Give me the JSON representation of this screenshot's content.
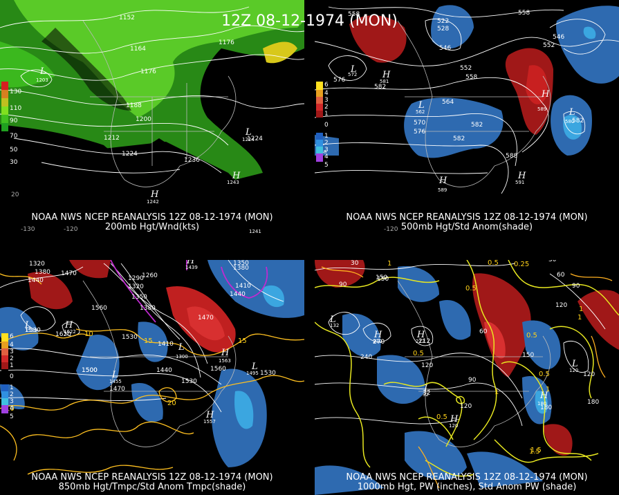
{
  "title": "12Z 08-12-1974 (MON)",
  "panels": [
    {
      "id": "200mb",
      "line1": "NOAA NWS NCEP REANALYSIS 12Z 08-12-1974 (MON)",
      "line2": "200mb Hgt/Wnd(kts)",
      "legend": [
        "130",
        "110",
        "90",
        "70",
        "50",
        "30"
      ],
      "legend_colors": [
        "#d62020",
        "#d68020",
        "#d6c020",
        "#80e020",
        "#40c020",
        "#20a020"
      ],
      "contour_labels": [
        "1152",
        "1164",
        "1176",
        "1176",
        "1188",
        "1200",
        "1212",
        "1224",
        "1236",
        "1224"
      ],
      "centers": [
        {
          "type": "L",
          "value": "1203"
        },
        {
          "type": "L",
          "value": "1224"
        },
        {
          "type": "H",
          "value": "1243"
        },
        {
          "type": "H",
          "value": "1242"
        },
        {
          "type": "H",
          "value": "1241"
        }
      ],
      "lon_labels": [
        "-130",
        "-120",
        "20"
      ]
    },
    {
      "id": "500mb",
      "line1": "NOAA NWS NCEP REANALYSIS 12Z 08-12-1974 (MON)",
      "line2": "500mb Hgt/Std Anom(shade)",
      "legend": [
        "6",
        "4",
        "3",
        "2",
        "1",
        "0",
        "1",
        "2",
        "3",
        "4",
        "5"
      ],
      "legend_colors": [
        "#ffe020",
        "#e8a020",
        "#e06040",
        "#d02828",
        "#a01818",
        "#000000",
        "#000000",
        "#2060c0",
        "#3090e0",
        "#40c0e0",
        "#a040e0"
      ],
      "contour_labels": [
        "558",
        "558",
        "522",
        "528",
        "546",
        "546",
        "552",
        "576",
        "582",
        "552",
        "558",
        "564",
        "570",
        "576",
        "582",
        "588",
        "582",
        "582"
      ],
      "centers": [
        {
          "type": "L",
          "value": "572"
        },
        {
          "type": "H",
          "value": "581"
        },
        {
          "type": "L",
          "value": "562"
        },
        {
          "type": "L",
          "value": "568"
        },
        {
          "type": "H",
          "value": "589"
        },
        {
          "type": "H",
          "value": "589"
        },
        {
          "type": "H",
          "value": "591"
        },
        {
          "type": "L",
          "value": "580"
        }
      ],
      "lon_labels": [
        "-120"
      ]
    },
    {
      "id": "850mb",
      "line1": "NOAA NWS NCEP REANALYSIS 12Z 08-12-1974 (MON)",
      "line2": "850mb Hgt/Tmpc/Std Anom Tmpc(shade)",
      "legend": [
        "6",
        "4",
        "3",
        "2",
        "1",
        "0",
        "1",
        "2",
        "3",
        "4",
        "5"
      ],
      "legend_colors": [
        "#ffe020",
        "#e8a020",
        "#e06040",
        "#d02828",
        "#a01818",
        "#000000",
        "#000000",
        "#2060c0",
        "#3090e0",
        "#40c0e0",
        "#a040e0"
      ],
      "contour_labels": [
        "1320",
        "1380",
        "1440",
        "1470",
        "1260",
        "1290",
        "1320",
        "1350",
        "1380",
        "1350",
        "1380",
        "1410",
        "1440",
        "1470",
        "1530",
        "1560",
        "1620",
        "1500",
        "1530",
        "1410",
        "1440",
        "1470",
        "1530",
        "1560",
        "1530",
        "1500",
        "10",
        "10",
        "15",
        "15",
        "20"
      ],
      "centers": [
        {
          "type": "L",
          "value": "1530"
        },
        {
          "type": "H",
          "value": "1622"
        },
        {
          "type": "H",
          "value": "1439"
        },
        {
          "type": "L",
          "value": "1300"
        },
        {
          "type": "L",
          "value": "1455"
        },
        {
          "type": "H",
          "value": "1563"
        },
        {
          "type": "L",
          "value": "1495"
        },
        {
          "type": "H",
          "value": "1557"
        }
      ],
      "lon_labels": []
    },
    {
      "id": "1000mb",
      "line1": "NOAA NWS NCEP REANALYSIS 12Z 08-12-1974 (MON)",
      "line2": "1000mb Hgt, PW (inches), Std Anom PW (shade)",
      "legend": [],
      "legend_colors": [],
      "contour_labels": [
        "30",
        "90",
        "150",
        "1",
        "0.5",
        "0.25",
        "30",
        "60",
        "90",
        "120",
        "0.5",
        "1",
        "60",
        "120",
        "180",
        "240",
        "270",
        "212",
        "150",
        "0.5",
        "1",
        "0.5",
        "1.5",
        "1",
        "0.5",
        "120",
        "150",
        "180",
        "90",
        "120",
        "32",
        "0.5",
        "1",
        "1.5"
      ],
      "centers": [
        {
          "type": "L",
          "value": "132"
        },
        {
          "type": "H",
          "value": "270"
        },
        {
          "type": "H",
          "value": "212"
        },
        {
          "type": "L",
          "value": "32"
        },
        {
          "type": "H",
          "value": "120"
        },
        {
          "type": "L",
          "value": "120"
        },
        {
          "type": "H",
          "value": "180"
        }
      ],
      "lon_labels": []
    }
  ]
}
